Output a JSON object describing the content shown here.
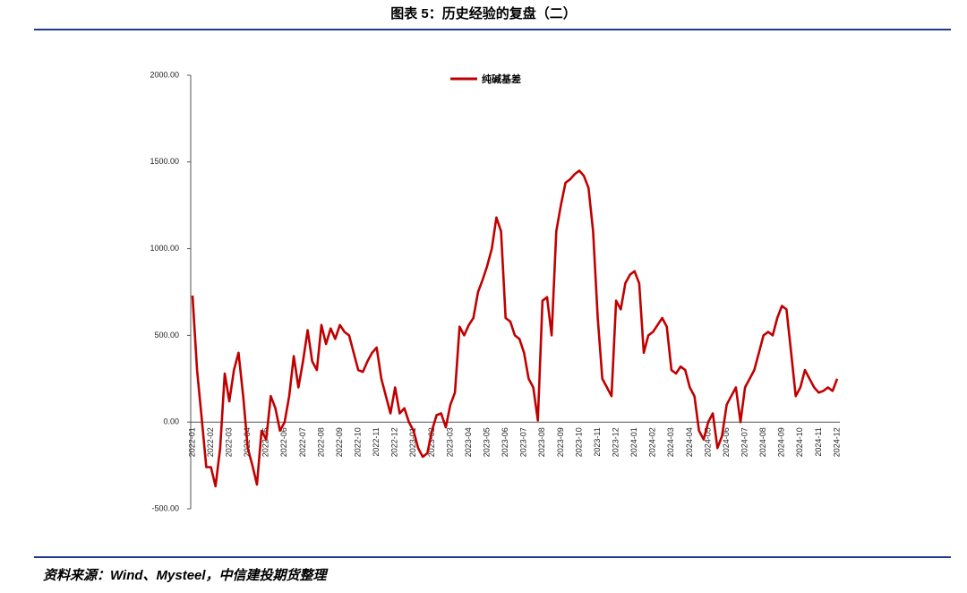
{
  "chart_data": {
    "type": "line",
    "title": "图表 5：历史经验的复盘（二）",
    "source": "资料来源：Wind、Mysteel，中信建投期货整理",
    "categories": [
      "2022-01",
      null,
      null,
      null,
      "2022-02",
      null,
      null,
      null,
      "2022-03",
      null,
      null,
      null,
      "2022-04",
      null,
      null,
      null,
      "2022-05",
      null,
      null,
      null,
      "2022-06",
      null,
      null,
      null,
      "2022-07",
      null,
      null,
      null,
      "2022-08",
      null,
      null,
      null,
      "2022-09",
      null,
      null,
      null,
      "2022-10",
      null,
      null,
      null,
      "2022-11",
      null,
      null,
      null,
      "2022-12",
      null,
      null,
      null,
      "2023-01",
      null,
      null,
      null,
      "2023-02",
      null,
      null,
      null,
      "2023-03",
      null,
      null,
      null,
      "2023-04",
      null,
      null,
      null,
      "2023-05",
      null,
      null,
      null,
      "2023-06",
      null,
      null,
      null,
      "2023-07",
      null,
      null,
      null,
      "2023-08",
      null,
      null,
      null,
      "2023-09",
      null,
      null,
      null,
      "2023-10",
      null,
      null,
      null,
      "2023-11",
      null,
      null,
      null,
      "2023-12",
      null,
      null,
      null,
      "2024-01",
      null,
      null,
      null,
      "2024-02",
      null,
      null,
      null,
      "2024-03",
      null,
      null,
      null,
      "2024-04",
      null,
      null,
      null,
      "2024-05",
      null,
      null,
      null,
      "2024-06",
      null,
      null,
      null,
      "2024-07",
      null,
      null,
      null,
      "2024-08",
      null,
      null,
      null,
      "2024-09",
      null,
      null,
      null,
      "2024-10",
      null,
      null,
      null,
      "2024-11",
      null,
      null,
      null,
      "2024-12"
    ],
    "series": [
      {
        "name": "纯碱基差",
        "color": "#c00000",
        "values": [
          730,
          300,
          20,
          -260,
          -260,
          -370,
          -150,
          280,
          120,
          300,
          400,
          150,
          -150,
          -250,
          -360,
          -50,
          -100,
          150,
          80,
          -50,
          0,
          150,
          380,
          200,
          350,
          530,
          350,
          300,
          560,
          450,
          540,
          480,
          560,
          520,
          500,
          400,
          300,
          290,
          350,
          400,
          430,
          250,
          150,
          50,
          200,
          50,
          80,
          0,
          -50,
          -150,
          -200,
          -180,
          -50,
          40,
          50,
          -30,
          100,
          170,
          550,
          500,
          560,
          600,
          750,
          820,
          900,
          1000,
          1180,
          1100,
          600,
          580,
          500,
          480,
          400,
          250,
          200,
          10,
          700,
          720,
          500,
          1100,
          1250,
          1380,
          1400,
          1430,
          1450,
          1420,
          1350,
          1100,
          600,
          250,
          200,
          150,
          700,
          650,
          800,
          850,
          870,
          800,
          400,
          500,
          520,
          560,
          600,
          550,
          300,
          280,
          320,
          300,
          200,
          150,
          -50,
          -100,
          0,
          50,
          -150,
          -80,
          100,
          150,
          200,
          0,
          200,
          250,
          300,
          400,
          500,
          520,
          500,
          600,
          670,
          650,
          400,
          150,
          200,
          300,
          250,
          200,
          170,
          180,
          200,
          180,
          250
        ]
      }
    ],
    "ylim": [
      -500,
      2000
    ],
    "yticks": [
      {
        "value": -500,
        "label": "-500.00"
      },
      {
        "value": 0,
        "label": "0.00"
      },
      {
        "value": 500,
        "label": "500.00"
      },
      {
        "value": 1000,
        "label": "1000.00"
      },
      {
        "value": 1500,
        "label": "1500.00"
      },
      {
        "value": 2000,
        "label": "2000.00"
      }
    ],
    "grid": false,
    "legend": "top"
  }
}
